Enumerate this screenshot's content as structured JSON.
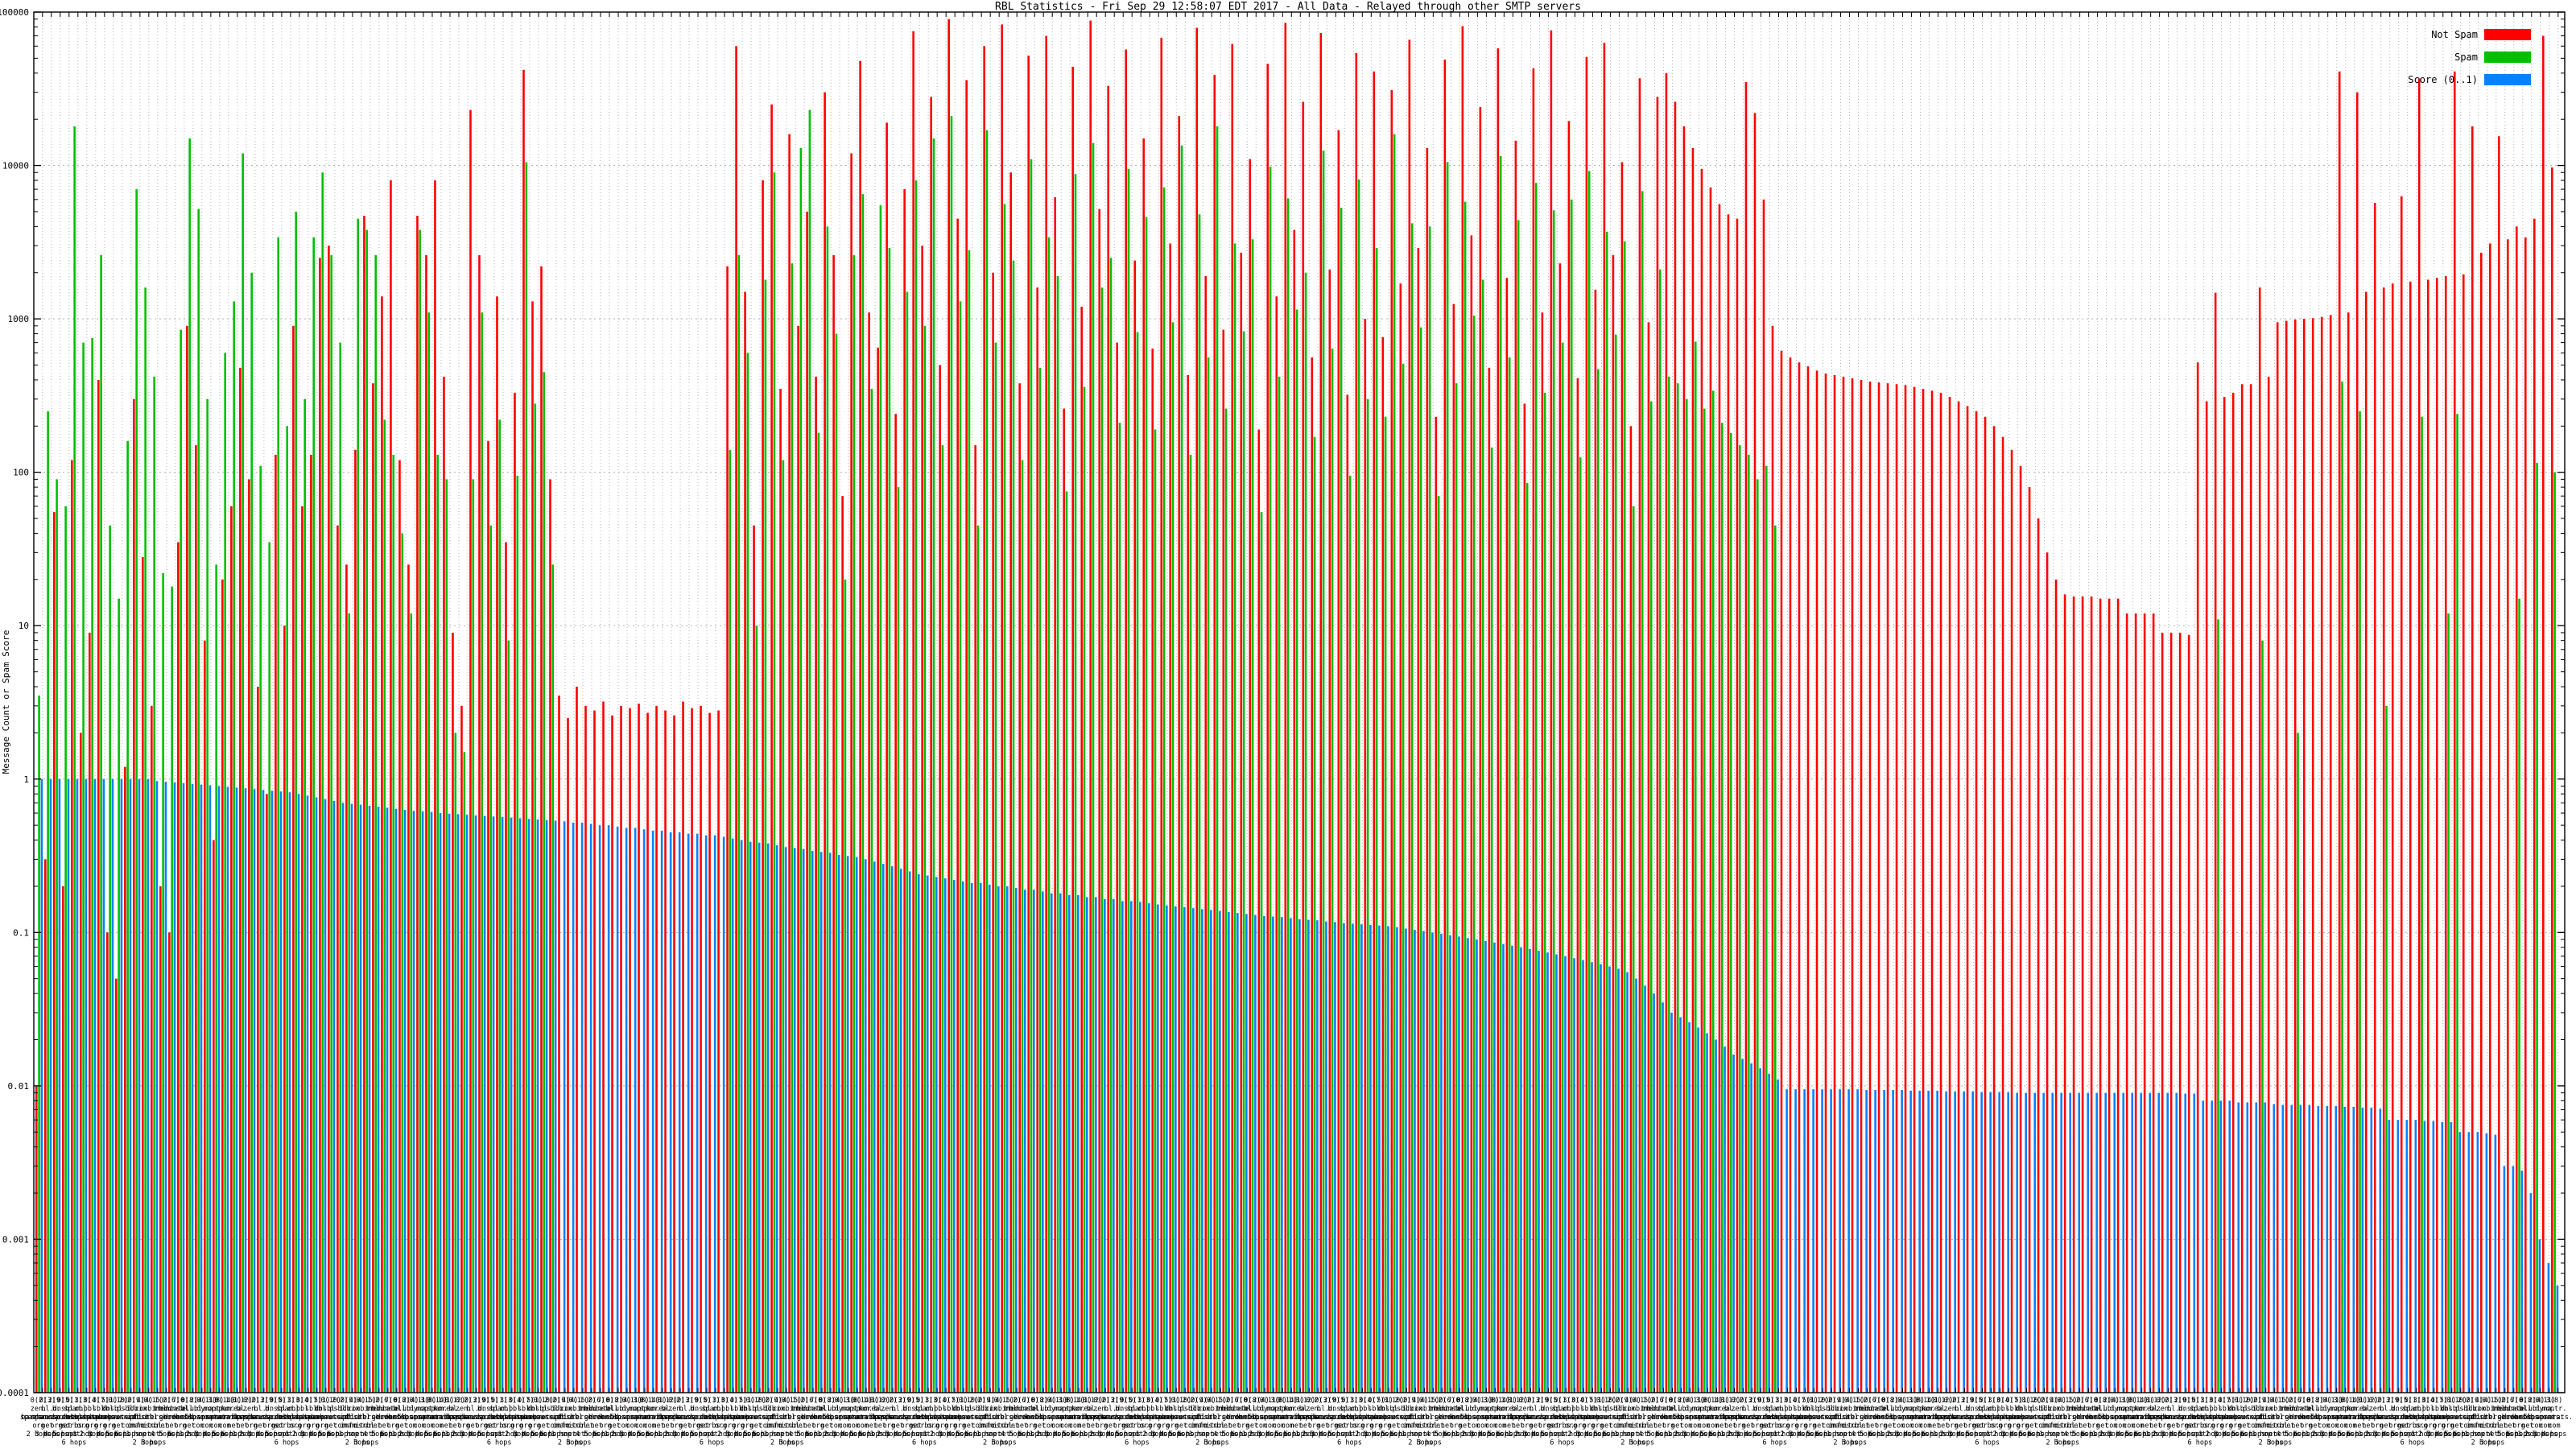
{
  "chart_data": {
    "type": "bar",
    "title": "RBL Statistics - Fri Sep 29 12:58:07 EDT 2017 - All Data - Relayed through other SMTP servers",
    "ylabel": "Message Count or Spam Score",
    "xlabel": "",
    "y_scale": "log",
    "ylim": [
      0.0001,
      100000
    ],
    "grid": true,
    "legend_position": "top-right",
    "yticks": [
      "100000",
      "10000",
      "1000",
      "100",
      "10",
      "1",
      "0.1",
      "0.01",
      "0.001",
      "0.0001"
    ],
    "legend": [
      {
        "label": "Not Spam",
        "color": "#ff0000"
      },
      {
        "label": "Spam",
        "color": "#00c000"
      },
      {
        "label": "Score (0..1)",
        "color": "#0a80ff"
      }
    ],
    "series_names": [
      "Not Spam",
      "Spam",
      "Score (0..1)"
    ],
    "colors": {
      "not_spam": "#ff0000",
      "spam": "#00c000",
      "score": "#0a80ff",
      "grid": "#b4b4b4",
      "frame": "#000000"
    },
    "slots": [
      [
        0.01,
        3.5,
        1
      ],
      [
        0.3,
        250,
        1
      ],
      [
        55,
        90,
        1
      ],
      [
        0.2,
        60,
        1
      ],
      [
        120,
        18000,
        1
      ],
      [
        2,
        700,
        1
      ],
      [
        9,
        750,
        1
      ],
      [
        400,
        2600,
        1
      ],
      [
        0.1,
        45,
        1
      ],
      [
        0.05,
        15,
        1
      ],
      [
        1.2,
        160,
        1
      ],
      [
        300,
        7000,
        1
      ],
      [
        28,
        1600,
        1
      ],
      [
        3,
        420,
        0.97
      ],
      [
        0.2,
        22,
        0.96
      ],
      [
        0.1,
        18,
        0.95
      ],
      [
        35,
        850,
        0.94
      ],
      [
        900,
        15000,
        0.93
      ],
      [
        150,
        5200,
        0.92
      ],
      [
        8,
        300,
        0.91
      ],
      [
        0.4,
        25,
        0.9
      ],
      [
        20,
        600,
        0.89
      ],
      [
        60,
        1300,
        0.88
      ],
      [
        480,
        12000,
        0.87
      ],
      [
        90,
        2000,
        0.86
      ],
      [
        4,
        110,
        0.85
      ],
      [
        0.8,
        35,
        0.84
      ],
      [
        130,
        3400,
        0.83
      ],
      [
        10,
        200,
        0.82
      ],
      [
        900,
        5000,
        0.8
      ],
      [
        60,
        300,
        0.78
      ],
      [
        130,
        3400,
        0.76
      ],
      [
        2500,
        9000,
        0.74
      ],
      [
        3000,
        2600,
        0.72
      ],
      [
        45,
        700,
        0.7
      ],
      [
        25,
        12,
        0.69
      ],
      [
        140,
        4500,
        0.68
      ],
      [
        4700,
        3800,
        0.67
      ],
      [
        380,
        2600,
        0.66
      ],
      [
        1400,
        220,
        0.65
      ],
      [
        8000,
        130,
        0.64
      ],
      [
        120,
        40,
        0.63
      ],
      [
        25,
        12,
        0.62
      ],
      [
        4700,
        3800,
        0.615
      ],
      [
        2600,
        1100,
        0.61
      ],
      [
        8000,
        130,
        0.6
      ],
      [
        420,
        90,
        0.595
      ],
      [
        9,
        2,
        0.59
      ],
      [
        3,
        1.5,
        0.585
      ],
      [
        23000,
        90,
        0.58
      ],
      [
        2600,
        1100,
        0.575
      ],
      [
        160,
        45,
        0.57
      ],
      [
        1400,
        220,
        0.565
      ],
      [
        35,
        8,
        0.56
      ],
      [
        330,
        95,
        0.555
      ],
      [
        42000,
        10500,
        0.55
      ],
      [
        1300,
        280,
        0.545
      ],
      [
        2200,
        450,
        0.54
      ],
      [
        90,
        25,
        0.535
      ],
      [
        3.5,
        0,
        0.53
      ],
      [
        2.5,
        0,
        0.52
      ],
      [
        4,
        0,
        0.52
      ],
      [
        3,
        0,
        0.51
      ],
      [
        2.8,
        0,
        0.5
      ],
      [
        3.2,
        0,
        0.5
      ],
      [
        2.6,
        0,
        0.49
      ],
      [
        3,
        0,
        0.48
      ],
      [
        2.9,
        0,
        0.48
      ],
      [
        3.1,
        0,
        0.47
      ],
      [
        2.7,
        0,
        0.46
      ],
      [
        3,
        0,
        0.46
      ],
      [
        2.8,
        0,
        0.45
      ],
      [
        2.6,
        0,
        0.45
      ],
      [
        3.2,
        0,
        0.44
      ],
      [
        2.9,
        0,
        0.44
      ],
      [
        3,
        0,
        0.43
      ],
      [
        2.7,
        0,
        0.43
      ],
      [
        2.8,
        0,
        0.42
      ],
      [
        2200,
        140,
        0.41
      ],
      [
        60000,
        2600,
        0.4
      ],
      [
        1500,
        600,
        0.39
      ],
      [
        45,
        10,
        0.385
      ],
      [
        8000,
        1800,
        0.38
      ],
      [
        25000,
        9000,
        0.37
      ],
      [
        350,
        120,
        0.36
      ],
      [
        16000,
        2300,
        0.355
      ],
      [
        900,
        13000,
        0.35
      ],
      [
        5000,
        23000,
        0.34
      ],
      [
        420,
        180,
        0.335
      ],
      [
        30000,
        4000,
        0.33
      ],
      [
        2600,
        800,
        0.32
      ],
      [
        70,
        20,
        0.315
      ],
      [
        12000,
        2600,
        0.31
      ],
      [
        48000,
        6500,
        0.3
      ],
      [
        1100,
        350,
        0.29
      ],
      [
        650,
        5500,
        0.28
      ],
      [
        19000,
        2900,
        0.27
      ],
      [
        240,
        80,
        0.26
      ],
      [
        7000,
        1500,
        0.25
      ],
      [
        75000,
        8000,
        0.24
      ],
      [
        3000,
        900,
        0.235
      ],
      [
        28000,
        15000,
        0.23
      ],
      [
        500,
        150,
        0.225
      ],
      [
        90000,
        21000,
        0.22
      ],
      [
        4500,
        1300,
        0.215
      ],
      [
        36000,
        2800,
        0.21
      ],
      [
        150,
        45,
        0.21
      ],
      [
        60000,
        17000,
        0.205
      ],
      [
        2000,
        700,
        0.2
      ],
      [
        83000,
        5600,
        0.2
      ],
      [
        9000,
        2400,
        0.195
      ],
      [
        380,
        120,
        0.19
      ],
      [
        52000,
        11000,
        0.19
      ],
      [
        1600,
        480,
        0.185
      ],
      [
        70000,
        3400,
        0.18
      ],
      [
        6200,
        1900,
        0.18
      ],
      [
        260,
        75,
        0.175
      ],
      [
        44000,
        8800,
        0.175
      ],
      [
        1200,
        360,
        0.17
      ],
      [
        88000,
        14000,
        0.17
      ],
      [
        5200,
        1600,
        0.165
      ],
      [
        33000,
        2500,
        0.165
      ],
      [
        700,
        210,
        0.16
      ],
      [
        57000,
        9500,
        0.16
      ],
      [
        2400,
        820,
        0.158
      ],
      [
        15000,
        4600,
        0.155
      ],
      [
        640,
        190,
        0.152
      ],
      [
        68000,
        7200,
        0.15
      ],
      [
        3100,
        950,
        0.148
      ],
      [
        21000,
        13500,
        0.146
      ],
      [
        430,
        130,
        0.144
      ],
      [
        79000,
        4800,
        0.142
      ],
      [
        1900,
        560,
        0.14
      ],
      [
        39000,
        18000,
        0.138
      ],
      [
        850,
        260,
        0.136
      ],
      [
        62000,
        3100,
        0.134
      ],
      [
        2700,
        830,
        0.132
      ],
      [
        11000,
        3300,
        0.13
      ],
      [
        190,
        55,
        0.128
      ],
      [
        46000,
        9800,
        0.127
      ],
      [
        1400,
        420,
        0.126
      ],
      [
        85000,
        6100,
        0.124
      ],
      [
        3800,
        1150,
        0.122
      ],
      [
        26000,
        2000,
        0.121
      ],
      [
        560,
        170,
        0.12
      ],
      [
        73000,
        12500,
        0.118
      ],
      [
        2100,
        640,
        0.117
      ],
      [
        17000,
        5300,
        0.115
      ],
      [
        320,
        95,
        0.114
      ],
      [
        54000,
        8100,
        0.113
      ],
      [
        1000,
        300,
        0.112
      ],
      [
        41000,
        2900,
        0.111
      ],
      [
        760,
        230,
        0.11
      ],
      [
        31000,
        16000,
        0.108
      ],
      [
        1700,
        510,
        0.106
      ],
      [
        66000,
        4200,
        0.104
      ],
      [
        2900,
        880,
        0.102
      ],
      [
        13000,
        4000,
        0.1
      ],
      [
        230,
        70,
        0.098
      ],
      [
        49000,
        10500,
        0.096
      ],
      [
        1250,
        380,
        0.094
      ],
      [
        81000,
        5800,
        0.092
      ],
      [
        3500,
        1050,
        0.09
      ],
      [
        24000,
        1800,
        0.088
      ],
      [
        480,
        145,
        0.086
      ],
      [
        58000,
        11500,
        0.084
      ],
      [
        1850,
        560,
        0.082
      ],
      [
        14500,
        4400,
        0.08
      ],
      [
        280,
        85,
        0.078
      ],
      [
        43000,
        7700,
        0.076
      ],
      [
        1100,
        330,
        0.074
      ],
      [
        76000,
        5100,
        0.072
      ],
      [
        2300,
        700,
        0.07
      ],
      [
        19500,
        6000,
        0.068
      ],
      [
        410,
        125,
        0.066
      ],
      [
        51000,
        9200,
        0.064
      ],
      [
        1550,
        470,
        0.062
      ],
      [
        63000,
        3700,
        0.06
      ],
      [
        2600,
        790,
        0.058
      ],
      [
        10500,
        3200,
        0.055
      ],
      [
        200,
        60,
        0.05
      ],
      [
        37000,
        6800,
        0.045
      ],
      [
        950,
        290,
        0.04
      ],
      [
        28000,
        2100,
        0.035
      ],
      [
        40000,
        420,
        0.03
      ],
      [
        26000,
        380,
        0.028
      ],
      [
        18000,
        300,
        0.026
      ],
      [
        13000,
        710,
        0.024
      ],
      [
        9500,
        260,
        0.022
      ],
      [
        7200,
        340,
        0.02
      ],
      [
        5600,
        210,
        0.018
      ],
      [
        4800,
        180,
        0.016
      ],
      [
        4500,
        150,
        0.015
      ],
      [
        35000,
        130,
        0.014
      ],
      [
        22000,
        90,
        0.013
      ],
      [
        6000,
        110,
        0.012
      ],
      [
        900,
        45,
        0.011
      ],
      [
        620,
        0,
        0.0095
      ],
      [
        560,
        0,
        0.0095
      ],
      [
        520,
        0,
        0.0095
      ],
      [
        490,
        0,
        0.0095
      ],
      [
        460,
        0,
        0.0095
      ],
      [
        440,
        0,
        0.0095
      ],
      [
        430,
        0,
        0.0095
      ],
      [
        420,
        0,
        0.0095
      ],
      [
        410,
        0,
        0.0095
      ],
      [
        400,
        0,
        0.0094
      ],
      [
        390,
        0,
        0.0094
      ],
      [
        385,
        0,
        0.0094
      ],
      [
        380,
        0,
        0.0094
      ],
      [
        375,
        0,
        0.0094
      ],
      [
        370,
        0,
        0.0093
      ],
      [
        360,
        0,
        0.0093
      ],
      [
        350,
        0,
        0.0093
      ],
      [
        340,
        0,
        0.0093
      ],
      [
        330,
        0,
        0.0092
      ],
      [
        310,
        0,
        0.0092
      ],
      [
        290,
        0,
        0.0092
      ],
      [
        270,
        0,
        0.0092
      ],
      [
        250,
        0,
        0.0091
      ],
      [
        230,
        0,
        0.0091
      ],
      [
        200,
        0,
        0.0091
      ],
      [
        170,
        0,
        0.0091
      ],
      [
        140,
        0,
        0.009
      ],
      [
        110,
        0,
        0.009
      ],
      [
        80,
        0,
        0.009
      ],
      [
        50,
        0,
        0.009
      ],
      [
        30,
        0,
        0.009
      ],
      [
        20,
        0,
        0.009
      ],
      [
        16,
        0,
        0.009
      ],
      [
        15.5,
        0,
        0.009
      ],
      [
        15.5,
        0,
        0.009
      ],
      [
        15.5,
        0,
        0.009
      ],
      [
        15,
        0,
        0.009
      ],
      [
        15,
        0,
        0.009
      ],
      [
        15,
        0,
        0.009
      ],
      [
        12,
        0,
        0.009
      ],
      [
        12,
        0,
        0.009
      ],
      [
        12,
        0,
        0.009
      ],
      [
        12,
        0,
        0.009
      ],
      [
        9,
        0,
        0.009
      ],
      [
        9,
        0,
        0.009
      ],
      [
        9,
        0,
        0.0089
      ],
      [
        8.7,
        0,
        0.0089
      ],
      [
        520,
        0,
        0.008
      ],
      [
        290,
        0,
        0.008
      ],
      [
        1480,
        11,
        0.008
      ],
      [
        310,
        0,
        0.008
      ],
      [
        330,
        0,
        0.0078
      ],
      [
        375,
        0,
        0.0078
      ],
      [
        375,
        0,
        0.0078
      ],
      [
        1600,
        8,
        0.0078
      ],
      [
        420,
        0,
        0.0076
      ],
      [
        950,
        0,
        0.0075
      ],
      [
        970,
        0,
        0.0075
      ],
      [
        990,
        2,
        0.0075
      ],
      [
        1000,
        0,
        0.0075
      ],
      [
        1010,
        0,
        0.0074
      ],
      [
        1030,
        0,
        0.0074
      ],
      [
        1060,
        0,
        0.0074
      ],
      [
        41000,
        390,
        0.0073
      ],
      [
        1100,
        0,
        0.0073
      ],
      [
        30000,
        250,
        0.0072
      ],
      [
        1500,
        0,
        0.0072
      ],
      [
        5700,
        0,
        0.0071
      ],
      [
        1600,
        3,
        0.006
      ],
      [
        1700,
        0,
        0.006
      ],
      [
        6300,
        0,
        0.006
      ],
      [
        1750,
        0,
        0.006
      ],
      [
        37000,
        230,
        0.0059
      ],
      [
        1800,
        0,
        0.0059
      ],
      [
        1850,
        0,
        0.0058
      ],
      [
        1900,
        12,
        0.0058
      ],
      [
        41000,
        240,
        0.005
      ],
      [
        1950,
        0,
        0.005
      ],
      [
        18000,
        0,
        0.005
      ],
      [
        2700,
        0,
        0.0049
      ],
      [
        3100,
        0,
        0.0048
      ],
      [
        15500,
        0,
        0.003
      ],
      [
        3300,
        0,
        0.003
      ],
      [
        4000,
        15,
        0.0028
      ],
      [
        3400,
        0,
        0.002
      ],
      [
        4500,
        115,
        0.001
      ],
      [
        70000,
        0,
        0.0007
      ],
      [
        9700,
        100,
        0.0005
      ]
    ],
    "xtick_pool": {
      "prefixes": [
        "0(2)",
        "0(3)",
        "2(9)",
        "0(5)",
        "0(1)",
        "3(3)",
        "0(4)",
        "0(7)",
        "5(1)",
        "0(10)",
        "2(2)",
        "0(9)",
        "4(4)",
        "0(15)",
        "1(2)",
        "0(6)",
        "7(0)",
        "0(8)",
        "2(4)",
        "0(11)",
        "3(8)",
        "0(14)",
        "1(1)",
        "0(12)"
      ],
      "hosts": [
        "zen.spamhaus.org",
        "bl.spamcop.net",
        "b.barracudacentral.org",
        "dnsbl.sorbs.net",
        "spam.dnsbl.sorbs.net",
        "cbl.abuseat.org",
        "pbl.spamhaus.org",
        "sbl.spamhaus.org",
        "xbl.spamhaus.org",
        "dnsbl-1.uceprotect.net",
        "psbl.surriel.com",
        "db.wpbl.info",
        "ix.dnsbl.manitu.net",
        "combined.rbl.msrbl.net",
        "rbl.interserver.net",
        "truncate.gbudb.net",
        "dnsbl.dronebl.org",
        "all.s5h.net",
        "ubl.unsubscore.com",
        "dyna.spamrats.com",
        "noptr.spamrats.com",
        "spam.spamrats.com",
        "korea.services.net",
        "bl.mailspike.net"
      ],
      "hops": [
        "1 hop",
        "2 hops",
        "3 hops",
        "4 hops",
        "5 hops",
        "6 hops"
      ]
    }
  }
}
